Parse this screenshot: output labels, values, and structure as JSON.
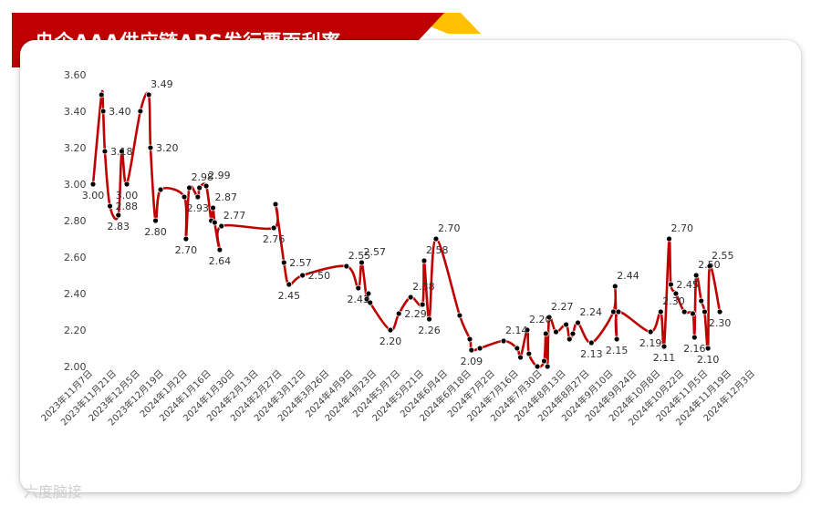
{
  "title": "央企AAA供应链ABS发行票面利率",
  "watermark": "六度脑接",
  "colors": {
    "banner": "#c00000",
    "accent": "#ffc000",
    "line": "#c00000",
    "marker": "#000000"
  },
  "chart_data": {
    "type": "line",
    "title": "央企AAA供应链ABS发行票面利率",
    "xlabel": "",
    "ylabel": "",
    "ylim": [
      2.0,
      3.6
    ],
    "yticks": [
      "2.00",
      "2.20",
      "2.40",
      "2.60",
      "2.80",
      "3.00",
      "3.20",
      "3.40",
      "3.60"
    ],
    "x_tick_labels": [
      "2023年11月7日",
      "2023年11月21日",
      "2023年12月5日",
      "2023年12月19日",
      "2024年1月2日",
      "2024年1月16日",
      "2024年1月30日",
      "2024年2月13日",
      "2024年2月27日",
      "2024年3月12日",
      "2024年3月26日",
      "2024年4月9日",
      "2024年4月23日",
      "2024年5月7日",
      "2024年5月21日",
      "2024年6月4日",
      "2024年6月18日",
      "2024年7月2日",
      "2024年7月16日",
      "2024年7月30日",
      "2024年8月13日",
      "2024年8月27日",
      "2024年9月10日",
      "2024年9月24日",
      "2024年10月8日",
      "2024年10月22日",
      "2024年11月5日",
      "2024年11月19日",
      "2024年12月3日"
    ],
    "series": [
      {
        "values": [
          {
            "x": "2023-11-07",
            "y": 3.0,
            "label": "3.00"
          },
          {
            "x": "2023-11-12",
            "y": 3.49
          },
          {
            "x": "2023-11-13",
            "y": 3.4,
            "label": "3.40"
          },
          {
            "x": "2023-11-14",
            "y": 3.18,
            "label": "3.18"
          },
          {
            "x": "2023-11-17",
            "y": 2.88,
            "label": "2.88"
          },
          {
            "x": "2023-11-22",
            "y": 2.83,
            "label": "2.83"
          },
          {
            "x": "2023-11-24",
            "y": 3.18
          },
          {
            "x": "2023-11-27",
            "y": 3.0,
            "label": "3.00"
          },
          {
            "x": "2023-12-05",
            "y": 3.4
          },
          {
            "x": "2023-12-10",
            "y": 3.49,
            "label": "3.49"
          },
          {
            "x": "2023-12-11",
            "y": 3.2,
            "label": "3.20"
          },
          {
            "x": "2023-12-14",
            "y": 2.8,
            "label": "2.80"
          },
          {
            "x": "2023-12-17",
            "y": 2.97
          },
          {
            "x": "2023-12-31",
            "y": 2.93
          },
          {
            "x": "2024-01-01",
            "y": 2.7,
            "label": "2.70"
          },
          {
            "x": "2024-01-03",
            "y": 2.98,
            "label": "2.98"
          },
          {
            "x": "2024-01-08",
            "y": 2.93,
            "label": "2.93"
          },
          {
            "x": "2024-01-09",
            "y": 2.98
          },
          {
            "x": "2024-01-13",
            "y": 2.99,
            "label": "2.99"
          },
          {
            "x": "2024-01-16",
            "y": 2.8
          },
          {
            "x": "2024-01-17",
            "y": 2.87,
            "label": "2.87"
          },
          {
            "x": "2024-01-18",
            "y": 2.79
          },
          {
            "x": "2024-01-21",
            "y": 2.64,
            "label": "2.64"
          },
          {
            "x": "2024-01-22",
            "y": 2.77,
            "label": "2.77"
          },
          {
            "x": "2024-02-22",
            "y": 2.76,
            "label": "2.76"
          },
          {
            "x": "2024-02-23",
            "y": 2.89
          },
          {
            "x": "2024-02-28",
            "y": 2.57,
            "label": "2.57"
          },
          {
            "x": "2024-03-02",
            "y": 2.45,
            "label": "2.45"
          },
          {
            "x": "2024-03-10",
            "y": 2.5,
            "label": "2.50"
          },
          {
            "x": "2024-04-05",
            "y": 2.55,
            "label": "2.55"
          },
          {
            "x": "2024-04-12",
            "y": 2.43,
            "label": "2.43"
          },
          {
            "x": "2024-04-14",
            "y": 2.57,
            "label": "2.57"
          },
          {
            "x": "2024-04-17",
            "y": 2.37
          },
          {
            "x": "2024-04-18",
            "y": 2.4
          },
          {
            "x": "2024-04-19",
            "y": 2.35
          },
          {
            "x": "2024-05-01",
            "y": 2.2,
            "label": "2.20"
          },
          {
            "x": "2024-05-06",
            "y": 2.29,
            "label": "2.29"
          },
          {
            "x": "2024-05-13",
            "y": 2.38,
            "label": "2.38"
          },
          {
            "x": "2024-05-20",
            "y": 2.34
          },
          {
            "x": "2024-05-21",
            "y": 2.58,
            "label": "2.58"
          },
          {
            "x": "2024-05-24",
            "y": 2.26,
            "label": "2.26"
          },
          {
            "x": "2024-05-28",
            "y": 2.7,
            "label": "2.70"
          },
          {
            "x": "2024-06-11",
            "y": 2.28
          },
          {
            "x": "2024-06-17",
            "y": 2.15
          },
          {
            "x": "2024-06-18",
            "y": 2.09,
            "label": "2.09"
          },
          {
            "x": "2024-06-23",
            "y": 2.1
          },
          {
            "x": "2024-07-07",
            "y": 2.14,
            "label": "2.14"
          },
          {
            "x": "2024-07-15",
            "y": 2.1
          },
          {
            "x": "2024-07-17",
            "y": 2.05
          },
          {
            "x": "2024-07-21",
            "y": 2.2,
            "label": "2.20"
          },
          {
            "x": "2024-07-22",
            "y": 2.07
          },
          {
            "x": "2024-07-27",
            "y": 2.0
          },
          {
            "x": "2024-07-31",
            "y": 2.03
          },
          {
            "x": "2024-08-01",
            "y": 2.18
          },
          {
            "x": "2024-08-02",
            "y": 2.0
          },
          {
            "x": "2024-08-03",
            "y": 2.27,
            "label": "2.27"
          },
          {
            "x": "2024-08-07",
            "y": 2.19
          },
          {
            "x": "2024-08-13",
            "y": 2.23
          },
          {
            "x": "2024-08-15",
            "y": 2.15
          },
          {
            "x": "2024-08-17",
            "y": 2.18
          },
          {
            "x": "2024-08-20",
            "y": 2.24,
            "label": "2.24"
          },
          {
            "x": "2024-08-28",
            "y": 2.13,
            "label": "2.13"
          },
          {
            "x": "2024-09-10",
            "y": 2.3
          },
          {
            "x": "2024-09-11",
            "y": 2.44,
            "label": "2.44"
          },
          {
            "x": "2024-09-12",
            "y": 2.15,
            "label": "2.15"
          },
          {
            "x": "2024-09-13",
            "y": 2.3
          },
          {
            "x": "2024-10-02",
            "y": 2.19,
            "label": "2.19"
          },
          {
            "x": "2024-10-08",
            "y": 2.3,
            "label": "2.30"
          },
          {
            "x": "2024-10-10",
            "y": 2.11,
            "label": "2.11"
          },
          {
            "x": "2024-10-13",
            "y": 2.7,
            "label": "2.70"
          },
          {
            "x": "2024-10-14",
            "y": 2.45,
            "label": "2.45"
          },
          {
            "x": "2024-10-17",
            "y": 2.4
          },
          {
            "x": "2024-10-22",
            "y": 2.3
          },
          {
            "x": "2024-10-27",
            "y": 2.29
          },
          {
            "x": "2024-10-28",
            "y": 2.16,
            "label": "2.16"
          },
          {
            "x": "2024-10-29",
            "y": 2.5,
            "label": "2.50"
          },
          {
            "x": "2024-11-01",
            "y": 2.36
          },
          {
            "x": "2024-11-03",
            "y": 2.3
          },
          {
            "x": "2024-11-05",
            "y": 2.1,
            "label": "2.10"
          },
          {
            "x": "2024-11-06",
            "y": 2.55,
            "label": "2.55"
          },
          {
            "x": "2024-11-12",
            "y": 2.3,
            "label": "2.30"
          }
        ]
      }
    ],
    "grid": false,
    "legend": "none"
  }
}
